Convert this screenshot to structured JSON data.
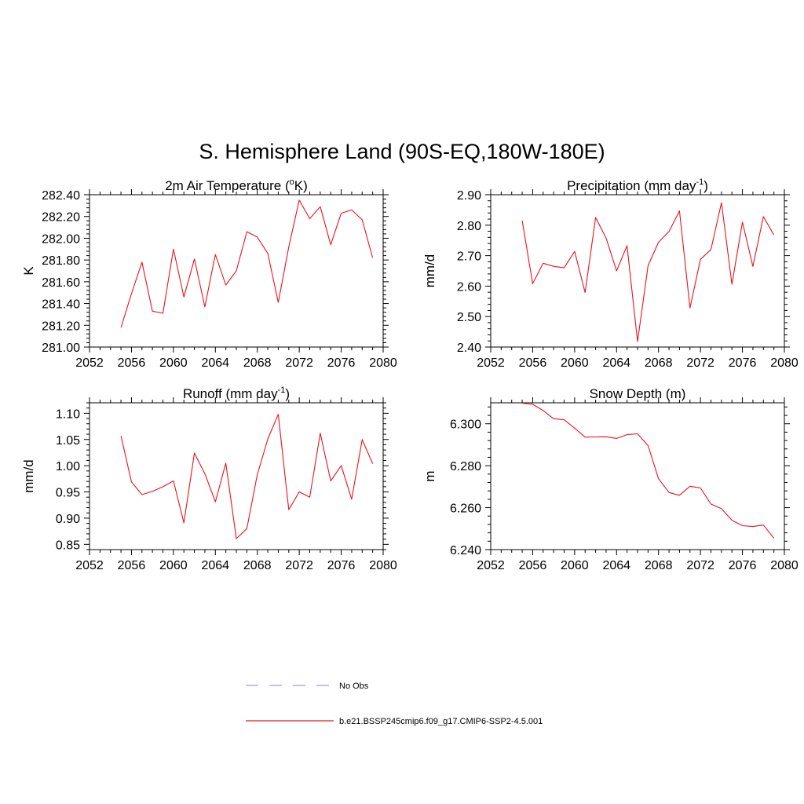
{
  "figure": {
    "title": "S. Hemisphere Land (90S-EQ,180W-180E)"
  },
  "colors": {
    "series": "#e8141c",
    "obs": "#9b9bef",
    "axis": "#000000"
  },
  "legend": {
    "placement": "bottom-center",
    "entries": [
      {
        "label": "No Obs",
        "style": "dashed",
        "color": "#9b9bef"
      },
      {
        "label": "b.e21.BSSP245cmip6.f09_g17.CMIP6-SSP2-4.5.001",
        "style": "solid",
        "color": "#e8141c"
      }
    ]
  },
  "chart_data": [
    {
      "type": "line",
      "title": "2m Air Temperature (",
      "title_sup": "o",
      "title_after": "K)",
      "ylabel": "K",
      "xlim": [
        2052,
        2080
      ],
      "ylim": [
        281.0,
        282.4
      ],
      "xticks": [
        2052,
        2056,
        2060,
        2064,
        2068,
        2072,
        2076,
        2080
      ],
      "yticks": [
        "281.00",
        "281.20",
        "281.40",
        "281.60",
        "281.80",
        "282.00",
        "282.20",
        "282.40"
      ],
      "grid": false,
      "x": [
        2055,
        2056,
        2057,
        2058,
        2059,
        2060,
        2061,
        2062,
        2063,
        2064,
        2065,
        2066,
        2067,
        2068,
        2069,
        2070,
        2071,
        2072,
        2073,
        2074,
        2075,
        2076,
        2077,
        2078,
        2079
      ],
      "series": [
        {
          "values": [
            281.18,
            281.49,
            281.78,
            281.33,
            281.31,
            281.9,
            281.46,
            281.81,
            281.37,
            281.85,
            281.57,
            281.7,
            282.06,
            282.01,
            281.86,
            281.41,
            281.92,
            282.35,
            282.18,
            282.29,
            281.94,
            282.23,
            282.26,
            282.17,
            281.82
          ]
        }
      ]
    },
    {
      "type": "line",
      "title": "Precipitation (mm day",
      "title_sup": "-1",
      "title_after": ")",
      "ylabel": "mm/d",
      "xlim": [
        2052,
        2080
      ],
      "ylim": [
        2.4,
        2.9
      ],
      "xticks": [
        2052,
        2056,
        2060,
        2064,
        2068,
        2072,
        2076,
        2080
      ],
      "yticks": [
        "2.40",
        "2.50",
        "2.60",
        "2.70",
        "2.80",
        "2.90"
      ],
      "grid": false,
      "x": [
        2055,
        2056,
        2057,
        2058,
        2059,
        2060,
        2061,
        2062,
        2063,
        2064,
        2065,
        2066,
        2067,
        2068,
        2069,
        2070,
        2071,
        2072,
        2073,
        2074,
        2075,
        2076,
        2077,
        2078,
        2079
      ],
      "series": [
        {
          "values": [
            2.815,
            2.608,
            2.675,
            2.665,
            2.66,
            2.714,
            2.579,
            2.825,
            2.758,
            2.65,
            2.733,
            2.418,
            2.667,
            2.744,
            2.779,
            2.847,
            2.528,
            2.688,
            2.72,
            2.874,
            2.606,
            2.81,
            2.665,
            2.828,
            2.768
          ]
        }
      ]
    },
    {
      "type": "line",
      "title": "Runoff (mm day",
      "title_sup": "-1",
      "title_after": ")",
      "ylabel": "mm/d",
      "xlim": [
        2052,
        2080
      ],
      "ylim": [
        0.84,
        1.12
      ],
      "xticks": [
        2052,
        2056,
        2060,
        2064,
        2068,
        2072,
        2076,
        2080
      ],
      "yticks": [
        "0.85",
        "0.90",
        "0.95",
        "1.00",
        "1.05",
        "1.10"
      ],
      "grid": false,
      "x": [
        2055,
        2056,
        2057,
        2058,
        2059,
        2060,
        2061,
        2062,
        2063,
        2064,
        2065,
        2066,
        2067,
        2068,
        2069,
        2070,
        2071,
        2072,
        2073,
        2074,
        2075,
        2076,
        2077,
        2078,
        2079
      ],
      "series": [
        {
          "values": [
            1.057,
            0.969,
            0.945,
            0.951,
            0.96,
            0.971,
            0.891,
            1.024,
            0.985,
            0.931,
            1.005,
            0.861,
            0.88,
            0.983,
            1.051,
            1.098,
            0.916,
            0.95,
            0.94,
            1.062,
            0.971,
            1.0,
            0.936,
            1.05,
            1.004
          ]
        }
      ]
    },
    {
      "type": "line",
      "title": "Snow Depth (m)",
      "title_sup": "",
      "title_after": "",
      "ylabel": "m",
      "xlim": [
        2052,
        2080
      ],
      "ylim": [
        6.24,
        6.31
      ],
      "xticks": [
        2052,
        2056,
        2060,
        2064,
        2068,
        2072,
        2076,
        2080
      ],
      "yticks": [
        "6.240",
        "6.260",
        "6.280",
        "6.300"
      ],
      "grid": false,
      "x": [
        2055,
        2056,
        2057,
        2058,
        2059,
        2060,
        2061,
        2062,
        2063,
        2064,
        2065,
        2066,
        2067,
        2068,
        2069,
        2070,
        2071,
        2072,
        2073,
        2074,
        2075,
        2076,
        2077,
        2078,
        2079
      ],
      "series": [
        {
          "values": [
            6.3098,
            6.3093,
            6.3063,
            6.3024,
            6.3019,
            6.2979,
            6.2936,
            6.2937,
            6.2938,
            6.293,
            6.2948,
            6.2952,
            6.2896,
            6.2738,
            6.2672,
            6.2659,
            6.2702,
            6.2694,
            6.2617,
            6.2595,
            6.254,
            6.2514,
            6.251,
            6.2517,
            6.2455
          ]
        }
      ]
    }
  ]
}
